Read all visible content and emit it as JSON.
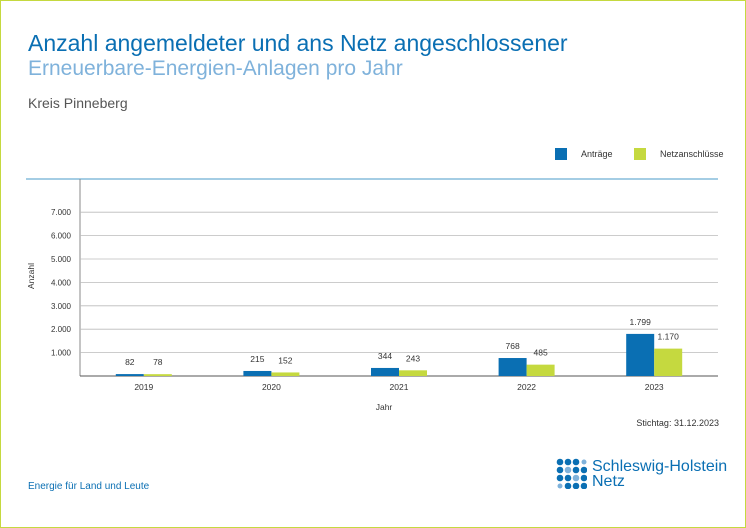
{
  "header": {
    "title_line1": "Anzahl angemeldeter und ans Netz angeschlossener",
    "title_line2": "Erneuerbare-Energien-Anlagen pro Jahr",
    "region": "Kreis Pinneberg"
  },
  "footer": {
    "stichtag": "Stichtag: 31.12.2023",
    "slogan": "Energie für Land und Leute",
    "logo_line1": "Schleswig-Holstein",
    "logo_line2": "Netz"
  },
  "colors": {
    "antraege": "#0a6fb3",
    "netzanschluesse": "#c5d93f",
    "frame": "#c5d93f",
    "title": "#0a6fb3",
    "subtitle": "#7fb2db"
  },
  "chart_data": {
    "type": "bar",
    "categories": [
      "2019",
      "2020",
      "2021",
      "2022",
      "2023"
    ],
    "series": [
      {
        "name": "Anträge",
        "values": [
          82,
          215,
          344,
          768,
          1799
        ],
        "labels": [
          "82",
          "215",
          "344",
          "768",
          "1.799"
        ]
      },
      {
        "name": "Netzanschlüsse",
        "values": [
          78,
          152,
          243,
          485,
          1170
        ],
        "labels": [
          "78",
          "152",
          "243",
          "485",
          "1.170"
        ]
      }
    ],
    "xlabel": "Jahr",
    "ylabel": "Anzahl",
    "ylim": [
      0,
      7000
    ],
    "yticks": [
      1000,
      2000,
      3000,
      4000,
      5000,
      6000,
      7000
    ],
    "ytick_labels": [
      "1.000",
      "2.000",
      "3.000",
      "4.000",
      "5.000",
      "6.000",
      "7.000"
    ],
    "grid": true,
    "legend": "top-right"
  }
}
